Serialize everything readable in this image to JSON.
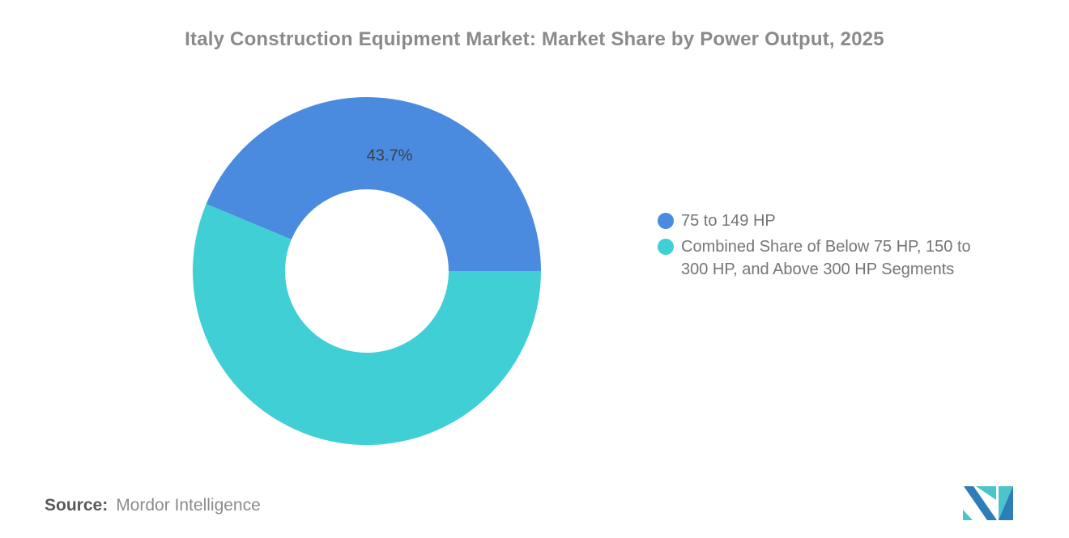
{
  "title": "Italy Construction Equipment Market: Market Share by Power Output, 2025",
  "chart_data": {
    "type": "pie",
    "subtype": "donut",
    "title": "Italy Construction Equipment Market: Market Share by Power Output, 2025",
    "start_angle_deg": 0,
    "direction": "counterclockwise",
    "inner_radius_ratio": 0.47,
    "legend_position": "right",
    "segments": [
      {
        "label": "75 to 149 HP",
        "value": 43.7,
        "color": "#4A8BE0",
        "data_label": "43.7%"
      },
      {
        "label": "Combined Share of Below 75 HP, 150 to 300 HP, and Above 300 HP Segments",
        "value": 56.3,
        "color": "#3FCFD5",
        "data_label": ""
      }
    ]
  },
  "source": {
    "prefix": "Source:",
    "name": "Mordor Intelligence"
  },
  "logo": {
    "name": "mordor-intelligence-logo",
    "teal_color": "#4CC4CB",
    "blue_color": "#2E7CB8"
  }
}
